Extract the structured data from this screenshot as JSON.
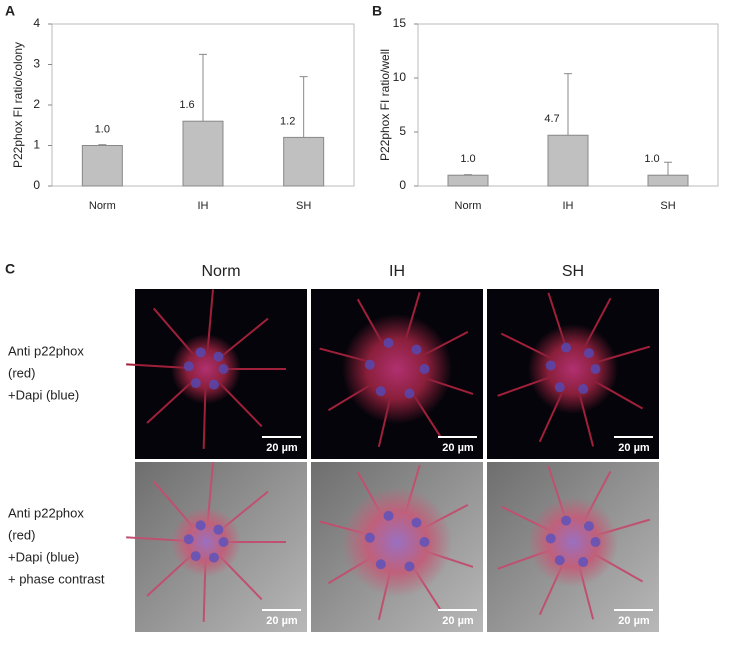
{
  "chart_data": [
    {
      "type": "bar",
      "panel": "A",
      "ylabel": "P22phox FI ratio/colony",
      "categories": [
        "Norm",
        "IH",
        "SH"
      ],
      "values": [
        1.0,
        1.6,
        1.2
      ],
      "value_labels": [
        "1.0",
        "1.6",
        "1.2"
      ],
      "errors": [
        0.02,
        1.65,
        1.5
      ],
      "color": "#c0c0c0",
      "ylim": [
        0,
        4
      ],
      "yticks": [
        0,
        1,
        2,
        3,
        4
      ]
    },
    {
      "type": "bar",
      "panel": "B",
      "ylabel": "P22phox FI ratio/well",
      "categories": [
        "Norm",
        "IH",
        "SH"
      ],
      "values": [
        1.0,
        4.7,
        1.0
      ],
      "value_labels": [
        "1.0",
        "4.7",
        "1.0"
      ],
      "errors": [
        0.05,
        5.7,
        1.2
      ],
      "color": "#c0c0c0",
      "ylim": [
        0,
        15
      ],
      "yticks": [
        0,
        5,
        10,
        15
      ]
    }
  ],
  "panel_c": {
    "label": "C",
    "columns": [
      "Norm",
      "IH",
      "SH"
    ],
    "rows": [
      [
        "Anti p22phox",
        "(red)",
        "+Dapi (blue)"
      ],
      [
        "Anti p22phox",
        "(red)",
        "+Dapi (blue)",
        "+ phase contrast"
      ]
    ],
    "scale_bar": "20 µm"
  }
}
